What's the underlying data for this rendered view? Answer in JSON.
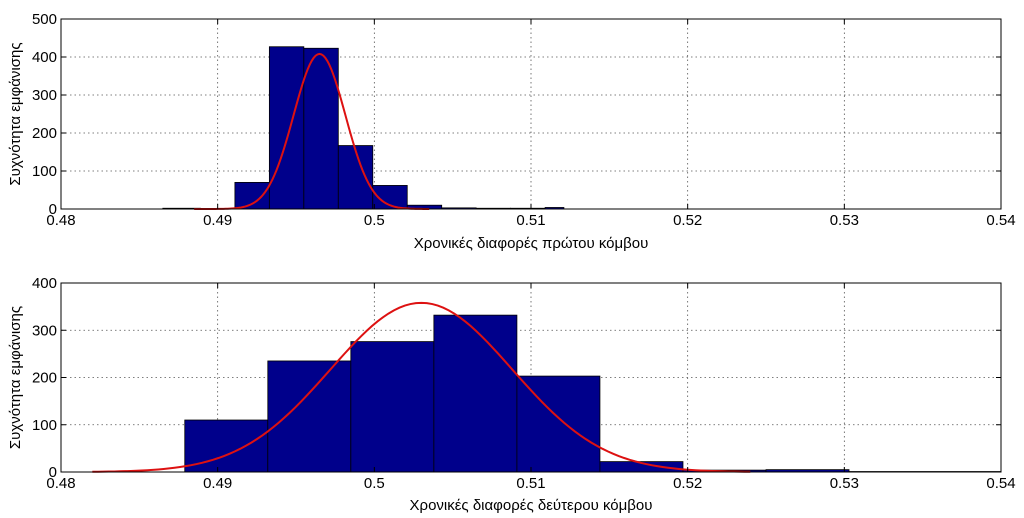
{
  "chart_data": [
    {
      "type": "bar",
      "xlabel": "Χρονικές διαφορές πρώτου κόμβου",
      "ylabel": "Συχνότητα εμφάνισης",
      "xlim": [
        0.48,
        0.54
      ],
      "ylim": [
        0,
        500
      ],
      "xticks": [
        "0.48",
        "0.49",
        "0.5",
        "0.51",
        "0.52",
        "0.53",
        "0.54"
      ],
      "yticks": [
        "0",
        "100",
        "200",
        "300",
        "400",
        "500"
      ],
      "grid": true,
      "bar_color": "#00008b",
      "curve_color": "#dd1111",
      "bins": [
        {
          "x0": 0.4865,
          "x1": 0.4889,
          "count": 2
        },
        {
          "x0": 0.4889,
          "x1": 0.4911,
          "count": 0
        },
        {
          "x0": 0.4911,
          "x1": 0.4933,
          "count": 70
        },
        {
          "x0": 0.4933,
          "x1": 0.4955,
          "count": 427
        },
        {
          "x0": 0.4955,
          "x1": 0.4977,
          "count": 423
        },
        {
          "x0": 0.4977,
          "x1": 0.4999,
          "count": 167
        },
        {
          "x0": 0.4999,
          "x1": 0.5021,
          "count": 62
        },
        {
          "x0": 0.5021,
          "x1": 0.5043,
          "count": 10
        },
        {
          "x0": 0.5043,
          "x1": 0.5065,
          "count": 3
        },
        {
          "x0": 0.5065,
          "x1": 0.5087,
          "count": 2
        },
        {
          "x0": 0.5087,
          "x1": 0.5109,
          "count": 2
        },
        {
          "x0": 0.5109,
          "x1": 0.5121,
          "count": 4
        }
      ],
      "fit_curve": {
        "type": "normal",
        "mean": 0.4965,
        "peak": 408,
        "sigma": 0.00165,
        "x_from": 0.4885,
        "x_to": 0.5035
      }
    },
    {
      "type": "bar",
      "xlabel": "Χρονικές διαφορές δεύτερου κόμβου",
      "ylabel": "Συχνότητα εμφάνισης",
      "xlim": [
        0.48,
        0.54
      ],
      "ylim": [
        0,
        400
      ],
      "xticks": [
        "0.48",
        "0.49",
        "0.5",
        "0.51",
        "0.52",
        "0.53",
        "0.54"
      ],
      "yticks": [
        "0",
        "100",
        "200",
        "300",
        "400"
      ],
      "grid": true,
      "bar_color": "#00008b",
      "curve_color": "#dd1111",
      "bins": [
        {
          "x0": 0.4879,
          "x1": 0.4932,
          "count": 110
        },
        {
          "x0": 0.4932,
          "x1": 0.4985,
          "count": 235
        },
        {
          "x0": 0.4985,
          "x1": 0.5038,
          "count": 276
        },
        {
          "x0": 0.5038,
          "x1": 0.5091,
          "count": 332
        },
        {
          "x0": 0.5091,
          "x1": 0.5144,
          "count": 203
        },
        {
          "x0": 0.5144,
          "x1": 0.5197,
          "count": 22
        },
        {
          "x0": 0.5197,
          "x1": 0.525,
          "count": 4
        },
        {
          "x0": 0.525,
          "x1": 0.5303,
          "count": 5
        },
        {
          "x0": 0.5303,
          "x1": 0.54,
          "count": 1
        }
      ],
      "fit_curve": {
        "type": "normal",
        "mean": 0.503,
        "peak": 358,
        "sigma": 0.0058,
        "x_from": 0.482,
        "x_to": 0.524
      }
    }
  ]
}
